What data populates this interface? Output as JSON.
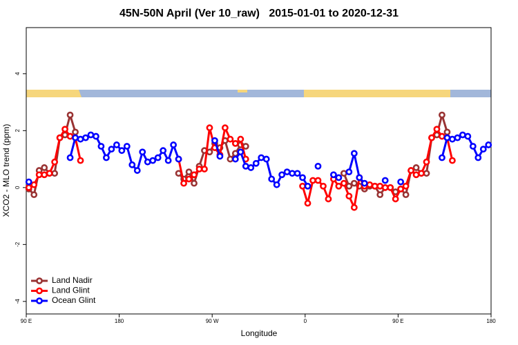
{
  "chart_data": {
    "type": "line",
    "title": "45N-50N April (Ver 10_raw)   2015-01-01 to 2020-12-31",
    "x_label": "Longitude",
    "y_label": "XCO2 - MLO trend (ppm)",
    "xlim": [
      90,
      540
    ],
    "ylim": [
      -4.44,
      5.62
    ],
    "xticks": [
      {
        "value": 90,
        "label": "90 E"
      },
      180,
      {
        "value": 270,
        "label": "90 W"
      },
      {
        "value": 360,
        "label": "0"
      },
      {
        "value": 450,
        "label": "90 E"
      },
      {
        "value": 540,
        "label": "180"
      }
    ],
    "yticks": [
      -4,
      -2,
      0,
      2,
      4
    ],
    "legend": "bottom-left",
    "series": [
      {
        "name": "Land Nadir",
        "color": "#993333",
        "x": [
          92.5,
          97.5,
          102.5,
          107.5,
          112.5,
          117.5,
          122.5,
          127.5,
          132.5,
          137.5,
          187.5,
          237.5,
          242.5,
          247.5,
          252.5,
          257.5,
          262.5,
          267.5,
          272.5,
          277.5,
          282.5,
          287.5,
          292.5,
          297.5,
          302.5,
          350,
          397.5,
          402.5,
          407.5,
          412.5,
          417.5,
          422.5,
          427.5,
          432.5,
          437.5,
          442.5,
          447.5,
          452.5,
          457.5,
          462.5,
          467.5,
          472.5,
          477.5,
          482.5,
          487.5,
          492.5,
          497.5
        ],
        "values": [
          -0.05,
          -0.25,
          0.6,
          0.7,
          0.5,
          0.5,
          1.75,
          1.85,
          2.55,
          1.95,
          null,
          0.5,
          0.3,
          0.55,
          0.15,
          0.75,
          1.3,
          1.25,
          1.55,
          1.4,
          1.65,
          1.0,
          1.2,
          1.5,
          1.45,
          null,
          0.5,
          0.05,
          0.15,
          0.05,
          -0.05,
          0.05,
          0.05,
          -0.25,
          0.0,
          0.0,
          -0.15,
          -0.05,
          -0.25,
          0.6,
          0.7,
          0.5,
          0.5,
          1.75,
          1.85,
          2.55,
          1.95
        ]
      },
      {
        "name": "Land Glint",
        "color": "#ff0000",
        "x": [
          92.5,
          97.5,
          102.5,
          107.5,
          112.5,
          117.5,
          122.5,
          127.5,
          132.5,
          137.5,
          142.5,
          190,
          237.5,
          242.5,
          247.5,
          252.5,
          257.5,
          262.5,
          267.5,
          272.5,
          277.5,
          282.5,
          287.5,
          292.5,
          297.5,
          302.5,
          330,
          357.5,
          362.5,
          367.5,
          372.5,
          377.5,
          382.5,
          387.5,
          392.5,
          397.5,
          402.5,
          407.5,
          412.5,
          417.5,
          422.5,
          427.5,
          432.5,
          437.5,
          442.5,
          447.5,
          452.5,
          457.5,
          462.5,
          467.5,
          472.5,
          477.5,
          482.5,
          487.5,
          492.5,
          497.5,
          502.5
        ],
        "values": [
          0.0,
          0.1,
          0.45,
          0.45,
          0.5,
          0.9,
          1.75,
          2.05,
          1.8,
          1.75,
          0.95,
          null,
          1.0,
          0.15,
          0.3,
          0.45,
          0.65,
          0.65,
          2.1,
          1.4,
          1.15,
          2.1,
          1.7,
          1.55,
          1.7,
          1.0,
          null,
          0.05,
          -0.55,
          0.25,
          0.25,
          0.05,
          -0.4,
          0.3,
          0.05,
          0.15,
          -0.3,
          -0.7,
          0.35,
          0.05,
          0.1,
          0.05,
          0.05,
          0.0,
          0.0,
          -0.4,
          -0.05,
          0.05,
          0.6,
          0.45,
          0.5,
          0.9,
          1.75,
          2.05,
          1.8,
          1.75,
          0.95
        ]
      },
      {
        "name": "Ocean Glint",
        "color": "#0000ff",
        "x": [
          92.5,
          110,
          132.5,
          137.5,
          142.5,
          147.5,
          152.5,
          157.5,
          162.5,
          167.5,
          172.5,
          177.5,
          182.5,
          187.5,
          192.5,
          197.5,
          202.5,
          207.5,
          212.5,
          217.5,
          222.5,
          227.5,
          232.5,
          237.5,
          255,
          272.5,
          277.5,
          285,
          292.5,
          297.5,
          302.5,
          307.5,
          312.5,
          317.5,
          322.5,
          327.5,
          332.5,
          337.5,
          342.5,
          347.5,
          352.5,
          357.5,
          362.5,
          367.5,
          372.5,
          380,
          387.5,
          392.5,
          397.5,
          402.5,
          407.5,
          412.5,
          417.5,
          422.5,
          430,
          437.5,
          445,
          452.5,
          470,
          492.5,
          497.5,
          502.5,
          507.5,
          512.5,
          517.5,
          522.5,
          527.5,
          532.5,
          537.5
        ],
        "values": [
          0.2,
          null,
          1.05,
          1.75,
          1.7,
          1.75,
          1.85,
          1.8,
          1.45,
          1.05,
          1.35,
          1.5,
          1.3,
          1.45,
          0.8,
          0.6,
          1.25,
          0.9,
          0.95,
          1.05,
          1.3,
          0.95,
          1.5,
          1.0,
          null,
          1.65,
          1.1,
          null,
          1.0,
          1.25,
          0.75,
          0.7,
          0.85,
          1.05,
          1.0,
          0.3,
          0.1,
          0.45,
          0.55,
          0.5,
          0.5,
          0.35,
          0.05,
          null,
          0.75,
          null,
          0.45,
          0.35,
          null,
          0.55,
          1.2,
          0.35,
          0.15,
          null,
          null,
          0.25,
          null,
          0.2,
          null,
          1.05,
          1.75,
          1.7,
          1.75,
          1.85,
          1.8,
          1.45,
          1.05,
          1.35,
          1.5
        ]
      }
    ]
  }
}
